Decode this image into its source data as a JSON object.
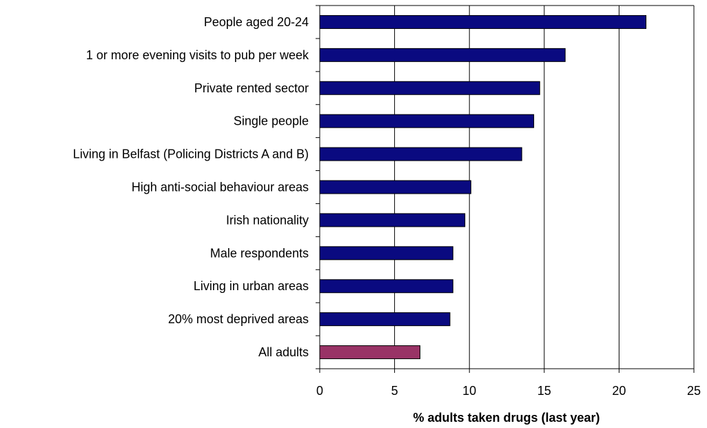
{
  "chart_data": {
    "type": "bar",
    "orientation": "horizontal",
    "categories": [
      "People aged 20-24",
      "1 or more evening visits to pub per week",
      "Private rented sector",
      "Single people",
      "Living in Belfast (Policing Districts A and B)",
      "High anti-social behaviour areas",
      "Irish nationality",
      "Male respondents",
      "Living in urban areas",
      "20% most deprived areas",
      "All adults"
    ],
    "values": [
      21.8,
      16.4,
      14.7,
      14.3,
      13.5,
      10.1,
      9.7,
      8.9,
      8.9,
      8.7,
      6.7
    ],
    "bar_colors": [
      "#0a0a80",
      "#0a0a80",
      "#0a0a80",
      "#0a0a80",
      "#0a0a80",
      "#0a0a80",
      "#0a0a80",
      "#0a0a80",
      "#0a0a80",
      "#0a0a80",
      "#993366"
    ],
    "xlabel": "% adults taken drugs (last year)",
    "ylabel": "",
    "xlim": [
      0,
      25
    ],
    "xticks": [
      0,
      5,
      10,
      15,
      20,
      25
    ],
    "grid": "vertical",
    "legend": "none"
  }
}
